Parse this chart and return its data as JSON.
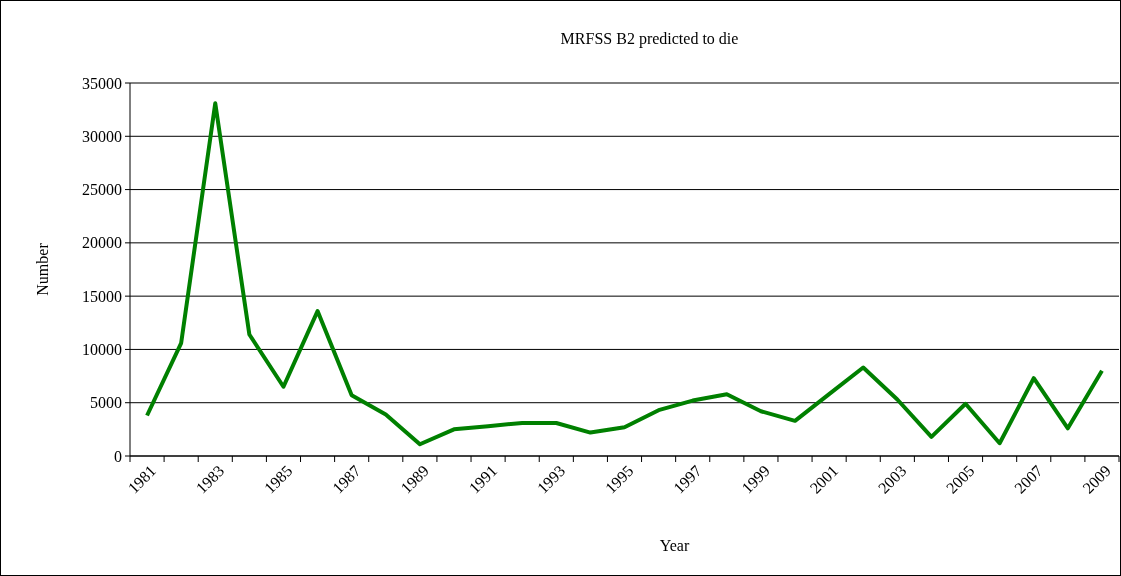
{
  "chart_data": {
    "type": "line",
    "title": "MRFSS B2 predicted to die",
    "xlabel": "Year",
    "ylabel": "Number",
    "categories": [
      "1981",
      null,
      "1983",
      null,
      "1985",
      null,
      "1987",
      null,
      "1989",
      null,
      "1991",
      null,
      "1993",
      null,
      "1995",
      null,
      "1997",
      null,
      "1999",
      null,
      "2001",
      null,
      "2003",
      null,
      "2005",
      null,
      "2007",
      null,
      "2009"
    ],
    "series": [
      {
        "color": "#008000",
        "values": [
          3800,
          10600,
          33100,
          11400,
          6500,
          13600,
          5700,
          3900,
          1100,
          2500,
          2800,
          3100,
          3100,
          2200,
          2700,
          4300,
          5200,
          5800,
          4200,
          3300,
          5800,
          8300,
          5300,
          1800,
          4900,
          1200,
          7300,
          2600,
          8000
        ]
      }
    ],
    "ylim": [
      0,
      35000
    ],
    "yticks": [
      0,
      5000,
      10000,
      15000,
      20000,
      25000,
      30000,
      35000
    ],
    "grid": "y",
    "marker": "none",
    "line_style": "solid"
  }
}
